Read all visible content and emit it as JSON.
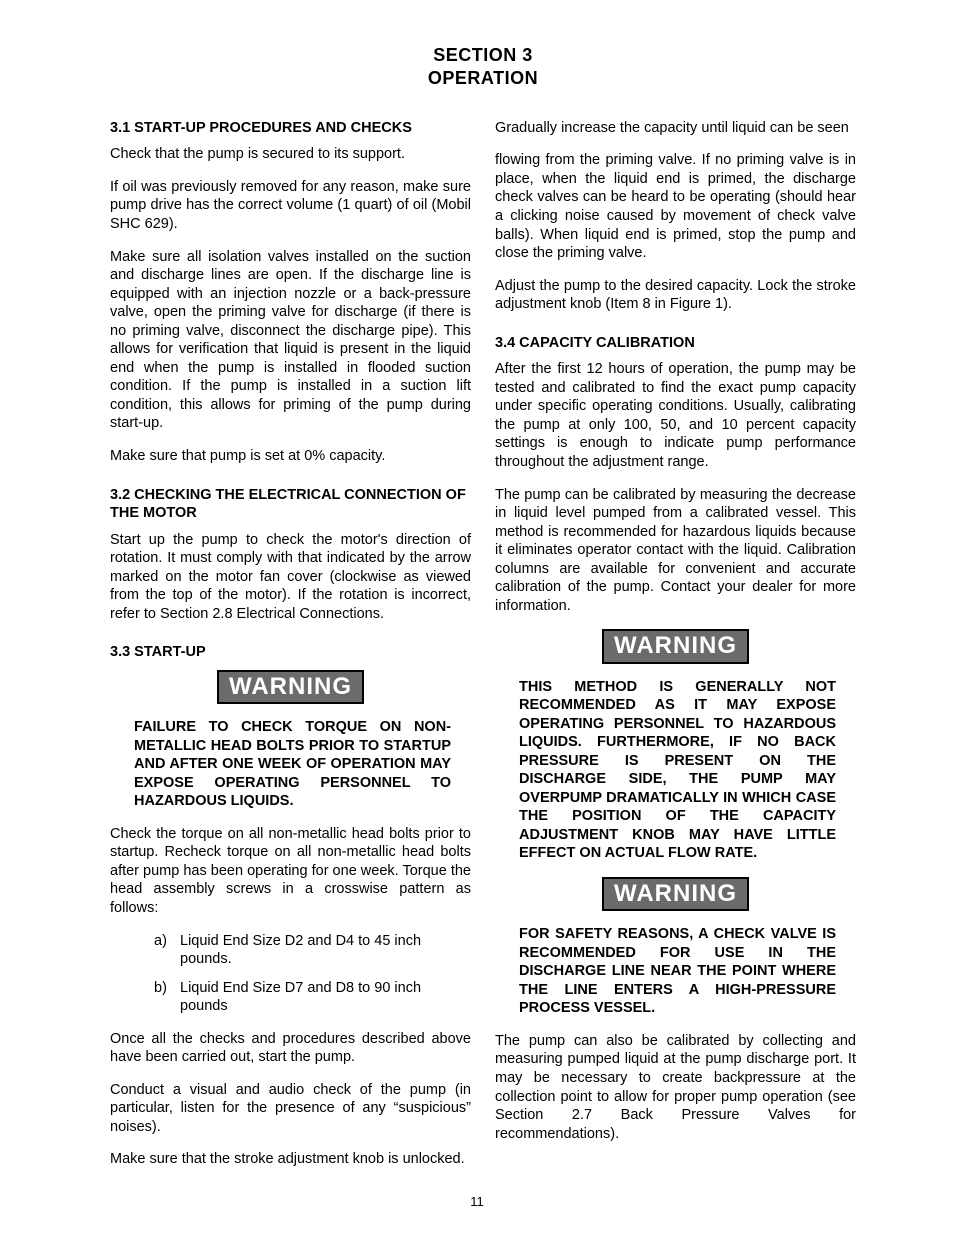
{
  "header": {
    "line1": "SECTION 3",
    "line2": "OPERATION"
  },
  "warning_label": "WARNING",
  "page_number": "11",
  "left": {
    "s31_title": "3.1 START-UP PROCEDURES AND CHECKS",
    "s31_p1": "Check that the pump is secured to its support.",
    "s31_p2": "If oil was previously removed for any reason, make sure pump drive has the correct volume (1 quart) of oil (Mobil SHC 629).",
    "s31_p3": "Make sure all isolation valves installed on the suction and discharge lines are open.  If the discharge line is equipped with an injection nozzle or a back-pressure valve, open the priming valve for discharge (if there is no priming valve, disconnect the discharge pipe).  This allows for verification that liquid is present in the liquid end when the pump is installed in flooded suction condition.  If the pump is installed in a suction lift condition, this allows for priming of the pump during start-up.",
    "s31_p4": "Make sure that pump is set at 0% capacity.",
    "s32_title": "3.2 CHECKING THE ELECTRICAL CONNECTION OF THE MOTOR",
    "s32_p1": "Start up the pump to check the motor's direction of rotation.  It must comply with that indicated by the arrow marked on the motor fan cover (clockwise as viewed from the top of the motor).  If the rotation is incorrect, refer to Section 2.8 Electrical Connections.",
    "s33_title": "3.3 START-UP",
    "s33_warn": "FAILURE TO CHECK TORQUE ON NON-METALLIC HEAD BOLTS PRIOR TO STARTUP AND AFTER ONE WEEK OF OPERATION MAY EXPOSE OPERATING PERSONNEL TO HAZARDOUS LIQUIDS.",
    "s33_p1": "Check the torque on all non-metallic head bolts prior to startup.  Recheck torque on all non-metallic head bolts after pump has been operating for one week. Torque the head assembly screws in a crosswise pattern as follows:",
    "s33_li_a": "Liquid End Size D2 and D4 to 45 inch pounds.",
    "s33_li_b": "Liquid End Size D7 and D8 to 90 inch pounds",
    "s33_p2": "Once all the checks and procedures described above have been carried out, start the pump.",
    "s33_p3": "Conduct a visual and audio check of the pump (in particular, listen for the presence of any “suspicious” noises).",
    "s33_p4": "Make sure that the stroke adjustment knob is unlocked.",
    "s33_p5": "Gradually increase the capacity until liquid can be seen"
  },
  "right": {
    "r_p1": "flowing from the priming valve.  If no priming valve is in place, when the liquid end is primed, the discharge check valves can be heard to be operating (should hear a clicking noise caused by movement of check valve balls).  When liquid end is primed, stop the pump and close the priming valve.",
    "r_p2": "Adjust the pump to the desired capacity.  Lock the stroke adjustment knob (Item 8 in Figure 1).",
    "s34_title": "3.4 CAPACITY CALIBRATION",
    "s34_p1": "After the first 12 hours of operation, the pump may be tested and calibrated to find the exact pump capacity under specific operating conditions.  Usually, calibrating the pump at only 100, 50, and 10 percent capacity settings is enough to indicate pump performance throughout the adjustment range.",
    "s34_p2": "The pump can be calibrated by measuring the decrease in liquid level pumped from a calibrated vessel.  This method is recommended for hazardous liquids because it eliminates operator contact with the liquid.  Calibration columns are available for convenient and accurate calibration of the pump.  Contact your dealer for more information.",
    "s34_warn1": "THIS METHOD IS GENERALLY NOT RECOMMENDED AS IT MAY EXPOSE OPERATING PERSONNEL TO HAZARDOUS LIQUIDS.  FURTHERMORE, IF NO BACK PRESSURE IS PRESENT ON THE DISCHARGE SIDE,  THE PUMP MAY OVERPUMP DRAMATICALLY IN WHICH CASE THE POSITION OF THE CAPACITY ADJUSTMENT KNOB MAY HAVE LITTLE EFFECT ON ACTUAL FLOW RATE.",
    "s34_warn2": "FOR SAFETY REASONS, A CHECK VALVE IS RECOMMENDED FOR USE IN THE DISCHARGE LINE NEAR THE POINT WHERE THE LINE ENTERS A HIGH-PRESSURE PROCESS VESSEL.",
    "s34_p3": "The pump can also be calibrated by collecting and measuring pumped liquid at the pump discharge port.  It may be necessary to create backpressure at the collection point to allow for proper pump operation (see Section 2.7 Back Pressure Valves for recommendations)."
  }
}
